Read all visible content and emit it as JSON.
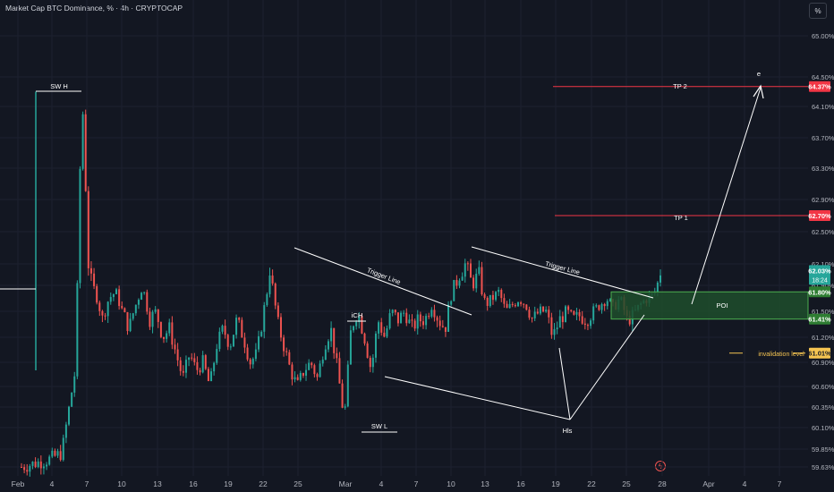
{
  "header": {
    "title": "Market Cap BTC Dominance, % · 4h · CRYPTOCAP",
    "scale_button": "%"
  },
  "colors": {
    "background": "#131722",
    "up": "#26a69a",
    "down": "#ef5350",
    "drawing": "#ffffff",
    "target_line": "#f23645",
    "poi_fill": "#1e4d2b",
    "poi_border": "#4caf50",
    "invalidation": "#f5c451"
  },
  "chart_data": {
    "type": "candlestick",
    "title": "Market Cap BTC Dominance, % · 4h · CRYPTOCAP",
    "ylim": [
      59.6,
      65.2
    ],
    "y_ticks": [
      65.0,
      64.5,
      64.1,
      63.7,
      63.3,
      62.9,
      62.5,
      62.1,
      61.9,
      61.5,
      61.2,
      60.9,
      60.6,
      60.35,
      60.1,
      59.85,
      59.63
    ],
    "y_tick_labels": [
      "65.00%",
      "64.50%",
      "64.10%",
      "63.70%",
      "63.30%",
      "62.90%",
      "62.50%",
      "62.10%",
      "61.90%",
      "61.50%",
      "61.20%",
      "60.90%",
      "60.60%",
      "60.35%",
      "60.10%",
      "59.85%",
      "59.63%"
    ],
    "x_ticks": [
      "Feb",
      "4",
      "7",
      "10",
      "13",
      "16",
      "19",
      "22",
      "25",
      "Mar",
      "4",
      "7",
      "10",
      "13",
      "16",
      "19",
      "22",
      "25",
      "28",
      "Apr",
      "4",
      "7"
    ],
    "current_price": "62.03%",
    "countdown": "18:24",
    "close_path": [
      [
        0,
        59.63
      ],
      [
        4,
        59.72
      ],
      [
        6,
        59.8
      ],
      [
        8,
        60.8
      ],
      [
        9,
        64.3
      ],
      [
        10,
        62.0
      ],
      [
        11,
        61.8
      ],
      [
        12,
        61.4
      ],
      [
        13,
        61.7
      ],
      [
        14,
        61.8
      ],
      [
        15,
        61.5
      ],
      [
        16,
        61.3
      ],
      [
        17,
        61.6
      ],
      [
        18,
        61.9
      ],
      [
        19,
        61.4
      ],
      [
        20,
        61.5
      ],
      [
        21,
        61.2
      ],
      [
        22,
        61.3
      ],
      [
        23,
        61.0
      ],
      [
        24,
        60.7
      ],
      [
        25,
        61.0
      ],
      [
        26,
        60.8
      ],
      [
        27,
        60.9
      ],
      [
        28,
        60.6
      ],
      [
        29,
        61.1
      ],
      [
        30,
        61.3
      ],
      [
        31,
        61.1
      ],
      [
        32,
        61.4
      ],
      [
        33,
        61.2
      ],
      [
        34,
        60.9
      ],
      [
        35,
        61.0
      ],
      [
        36,
        61.5
      ],
      [
        37,
        62.1
      ],
      [
        38,
        61.4
      ],
      [
        39,
        61.1
      ],
      [
        40,
        60.8
      ],
      [
        41,
        60.6
      ],
      [
        42,
        60.8
      ],
      [
        43,
        60.9
      ],
      [
        44,
        60.7
      ],
      [
        45,
        61.1
      ],
      [
        46,
        61.3
      ],
      [
        47,
        60.8
      ],
      [
        48,
        60.2
      ],
      [
        49,
        61.3
      ],
      [
        50,
        61.5
      ],
      [
        51,
        61.2
      ],
      [
        52,
        60.8
      ],
      [
        53,
        61.4
      ],
      [
        54,
        61.2
      ],
      [
        55,
        61.5
      ],
      [
        56,
        61.4
      ],
      [
        57,
        61.5
      ],
      [
        58,
        61.3
      ],
      [
        59,
        61.4
      ],
      [
        60,
        61.4
      ],
      [
        61,
        61.6
      ],
      [
        62,
        61.4
      ],
      [
        63,
        61.3
      ],
      [
        64,
        61.8
      ],
      [
        65,
        62.0
      ],
      [
        66,
        62.1
      ],
      [
        67,
        61.9
      ],
      [
        68,
        62.0
      ],
      [
        69,
        61.6
      ],
      [
        70,
        61.7
      ],
      [
        71,
        61.8
      ],
      [
        72,
        61.5
      ],
      [
        73,
        61.6
      ],
      [
        74,
        61.7
      ],
      [
        75,
        61.6
      ],
      [
        76,
        61.4
      ],
      [
        77,
        61.5
      ],
      [
        78,
        61.5
      ],
      [
        79,
        61.2
      ],
      [
        80,
        61.4
      ],
      [
        81,
        61.5
      ],
      [
        82,
        61.4
      ],
      [
        83,
        61.45
      ],
      [
        84,
        61.4
      ],
      [
        85,
        61.5
      ],
      [
        86,
        61.6
      ],
      [
        87,
        61.7
      ],
      [
        88,
        61.55
      ],
      [
        89,
        61.7
      ],
      [
        90,
        61.4
      ],
      [
        91,
        61.45
      ],
      [
        92,
        61.6
      ],
      [
        93,
        61.7
      ],
      [
        94,
        61.75
      ],
      [
        95,
        62.03
      ]
    ],
    "labels": [
      "SW H",
      "SW L",
      "iCH",
      "Trigger Line",
      "Trigger Line",
      "Hls",
      "TP 2",
      "TP 1",
      "POI",
      "invalidation level",
      "e"
    ],
    "levels": [
      {
        "name": "TP 2",
        "value": 64.37,
        "label": "64.37%"
      },
      {
        "name": "TP 1",
        "value": 62.7,
        "label": "62.70%"
      },
      {
        "name": "POI top",
        "value": 61.8,
        "label": "61.80%"
      },
      {
        "name": "POI bottom",
        "value": 61.41,
        "label": "61.41%"
      },
      {
        "name": "invalidation level",
        "value": 61.01,
        "label": "61.01%"
      }
    ]
  }
}
